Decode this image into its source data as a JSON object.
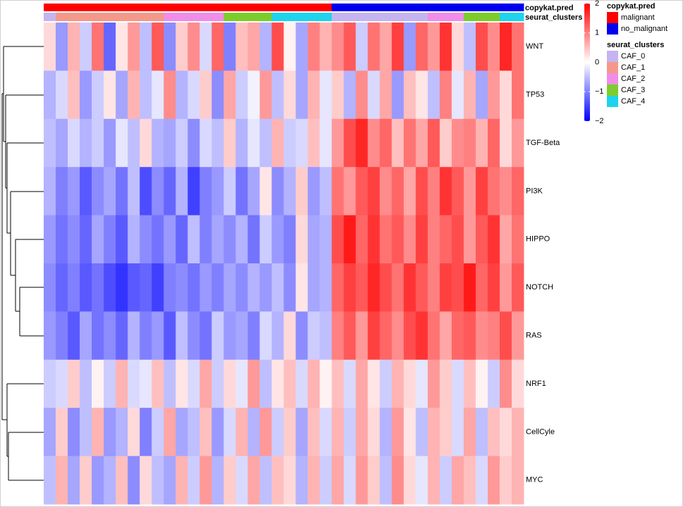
{
  "chart_data": {
    "type": "heatmap",
    "rows": [
      "WNT",
      "TP53",
      "TGF-Beta",
      "PI3K",
      "HIPPO",
      "NOTCH",
      "RAS",
      "NRF1",
      "CellCyle",
      "MYC"
    ],
    "values": [
      [
        0.3,
        -0.8,
        0.6,
        -0.4,
        1.1,
        -1.2,
        0.2,
        0.8,
        -0.5,
        1.3,
        -0.9,
        0.4,
        0.9,
        -0.3,
        1.2,
        -1.0,
        0.5,
        0.7,
        -0.6,
        1.4,
        0.1,
        -0.7,
        1.0,
        0.6,
        0.9,
        1.3,
        -0.4,
        1.1,
        0.7,
        1.5,
        -0.8,
        1.2,
        0.8,
        1.6,
        0.3,
        -0.5,
        1.4,
        0.9,
        1.7,
        1.1
      ],
      [
        -0.6,
        -0.3,
        0.5,
        -0.8,
        -0.4,
        0.2,
        -0.7,
        0.6,
        -0.5,
        -0.2,
        0.9,
        -0.6,
        -0.3,
        0.4,
        -0.9,
        0.7,
        -0.4,
        -0.1,
        0.8,
        -0.5,
        0.3,
        -0.7,
        0.6,
        -0.2,
        0.4,
        -0.6,
        0.9,
        -0.3,
        0.7,
        -0.8,
        0.5,
        0.2,
        -0.5,
        1.0,
        -0.2,
        0.6,
        -0.7,
        0.8,
        0.3,
        1.1
      ],
      [
        -0.5,
        -0.7,
        -0.3,
        -0.6,
        -0.4,
        -0.8,
        -0.2,
        -0.5,
        0.3,
        -0.6,
        -0.7,
        -0.4,
        -0.9,
        -0.3,
        -0.5,
        0.4,
        -0.6,
        -0.2,
        -0.5,
        0.6,
        -0.4,
        -0.3,
        0.5,
        -0.2,
        0.8,
        1.4,
        1.7,
        0.9,
        1.2,
        0.5,
        1.1,
        0.7,
        1.3,
        0.4,
        0.9,
        1.0,
        0.6,
        1.2,
        0.3,
        0.8
      ],
      [
        -0.6,
        -1.0,
        -0.8,
        -1.3,
        -0.9,
        -0.7,
        -1.1,
        -0.5,
        -1.4,
        -0.9,
        -1.2,
        -0.6,
        -1.5,
        -1.0,
        -0.8,
        -0.4,
        -1.1,
        -0.7,
        0.2,
        -0.9,
        -0.6,
        0.4,
        -0.8,
        -0.5,
        1.1,
        0.8,
        1.3,
        1.5,
        0.9,
        1.2,
        0.7,
        1.4,
        1.0,
        1.6,
        1.3,
        0.8,
        1.5,
        1.1,
        0.9,
        1.2
      ],
      [
        -0.8,
        -1.1,
        -0.9,
        -1.2,
        -0.7,
        -1.0,
        -1.3,
        -0.6,
        -0.9,
        -1.1,
        -0.8,
        -1.2,
        -0.5,
        -1.0,
        -0.7,
        -0.9,
        -0.6,
        -1.1,
        -0.4,
        -0.8,
        -1.0,
        0.3,
        -0.7,
        -0.6,
        1.4,
        1.8,
        1.2,
        1.6,
        1.1,
        1.3,
        0.9,
        1.5,
        1.0,
        1.2,
        1.4,
        0.8,
        1.3,
        1.6,
        0.7,
        1.1
      ],
      [
        -0.9,
        -1.2,
        -1.0,
        -1.3,
        -1.1,
        -1.4,
        -1.6,
        -1.3,
        -1.2,
        -1.5,
        -1.0,
        -0.9,
        -1.1,
        -0.8,
        -1.0,
        -0.7,
        -0.9,
        -0.6,
        -0.8,
        -0.5,
        -0.9,
        0.2,
        -0.7,
        -0.6,
        1.2,
        1.5,
        1.3,
        1.7,
        1.4,
        1.1,
        1.6,
        1.3,
        1.0,
        1.5,
        1.4,
        1.8,
        1.2,
        1.5,
        0.8,
        1.3
      ],
      [
        -0.8,
        -1.0,
        -1.3,
        -0.7,
        -1.1,
        -0.9,
        -1.2,
        -0.6,
        -1.0,
        -0.8,
        -1.3,
        -0.5,
        -0.9,
        -1.1,
        -0.4,
        -0.8,
        -0.7,
        -1.0,
        -0.3,
        -0.6,
        0.3,
        -0.9,
        -0.4,
        -0.5,
        1.0,
        1.3,
        0.8,
        1.5,
        1.2,
        0.9,
        1.4,
        1.6,
        1.1,
        0.7,
        1.2,
        1.3,
        0.9,
        1.0,
        1.4,
        0.8
      ],
      [
        -0.4,
        -0.3,
        0.4,
        -0.5,
        0.1,
        -0.4,
        0.6,
        -0.3,
        -0.2,
        0.5,
        -0.5,
        0.2,
        -0.3,
        0.7,
        -0.4,
        0.3,
        -0.2,
        0.8,
        -0.5,
        0.2,
        0.5,
        -0.3,
        0.6,
        0.1,
        0.5,
        -0.3,
        0.7,
        0.2,
        -0.4,
        0.6,
        0.3,
        -0.2,
        0.8,
        0.4,
        -0.3,
        0.5,
        0.1,
        -0.4,
        0.9,
        0.3
      ],
      [
        -0.7,
        0.4,
        -0.9,
        -0.5,
        0.6,
        -0.8,
        -0.6,
        0.3,
        -1.0,
        -0.4,
        0.7,
        -0.7,
        -0.5,
        0.5,
        -0.8,
        -0.3,
        0.6,
        -0.6,
        0.8,
        -0.4,
        0.4,
        -0.7,
        0.5,
        -0.3,
        0.6,
        -0.4,
        0.7,
        0.3,
        -0.6,
        0.8,
        0.2,
        -0.5,
        0.6,
        0.4,
        -0.3,
        0.7,
        -0.5,
        0.5,
        0.3,
        0.6
      ],
      [
        -0.5,
        0.6,
        -0.7,
        0.4,
        -0.8,
        -0.6,
        0.5,
        -0.9,
        0.3,
        -0.5,
        -0.7,
        0.6,
        -0.4,
        0.8,
        -0.6,
        0.4,
        -0.3,
        0.7,
        -0.5,
        0.5,
        0.3,
        -0.6,
        0.6,
        -0.4,
        0.7,
        -0.3,
        0.8,
        0.4,
        -0.5,
        0.9,
        0.3,
        -0.2,
        0.6,
        -0.4,
        0.7,
        0.5,
        -0.3,
        0.8,
        0.4,
        0.6
      ]
    ],
    "color_scale": {
      "lim": [
        -2,
        2
      ],
      "colors": [
        "#0000ff",
        "#ffffff",
        "#ff0000"
      ],
      "ticks": [
        2,
        1,
        0,
        {
          "value": -1,
          "label": "−1"
        },
        {
          "value": -2,
          "label": "−2"
        }
      ]
    },
    "annotations": [
      {
        "name": "copykat.pred",
        "levels": [
          {
            "name": "malignant",
            "color": "#ff0000"
          },
          {
            "name": "no_malignant",
            "color": "#0000ee"
          }
        ],
        "values": [
          "malignant",
          "malignant",
          "malignant",
          "malignant",
          "malignant",
          "malignant",
          "malignant",
          "malignant",
          "malignant",
          "malignant",
          "malignant",
          "malignant",
          "malignant",
          "malignant",
          "malignant",
          "malignant",
          "malignant",
          "malignant",
          "malignant",
          "malignant",
          "malignant",
          "malignant",
          "malignant",
          "malignant",
          "no_malignant",
          "no_malignant",
          "no_malignant",
          "no_malignant",
          "no_malignant",
          "no_malignant",
          "no_malignant",
          "no_malignant",
          "no_malignant",
          "no_malignant",
          "no_malignant",
          "no_malignant",
          "no_malignant",
          "no_malignant",
          "no_malignant",
          "no_malignant"
        ]
      },
      {
        "name": "seurat_clusters",
        "levels": [
          {
            "name": "CAF_0",
            "color": "#c4b5f0"
          },
          {
            "name": "CAF_1",
            "color": "#f4998a"
          },
          {
            "name": "CAF_2",
            "color": "#f08de8"
          },
          {
            "name": "CAF_3",
            "color": "#7ccd2c"
          },
          {
            "name": "CAF_4",
            "color": "#1fd3ed"
          }
        ],
        "values": [
          "CAF_0",
          "CAF_1",
          "CAF_1",
          "CAF_1",
          "CAF_1",
          "CAF_1",
          "CAF_1",
          "CAF_1",
          "CAF_1",
          "CAF_1",
          "CAF_2",
          "CAF_2",
          "CAF_2",
          "CAF_2",
          "CAF_2",
          "CAF_3",
          "CAF_3",
          "CAF_3",
          "CAF_3",
          "CAF_4",
          "CAF_4",
          "CAF_4",
          "CAF_4",
          "CAF_4",
          "CAF_0",
          "CAF_0",
          "CAF_0",
          "CAF_0",
          "CAF_0",
          "CAF_0",
          "CAF_0",
          "CAF_0",
          "CAF_2",
          "CAF_2",
          "CAF_2",
          "CAF_3",
          "CAF_3",
          "CAF_3",
          "CAF_4",
          "CAF_4"
        ]
      }
    ]
  }
}
